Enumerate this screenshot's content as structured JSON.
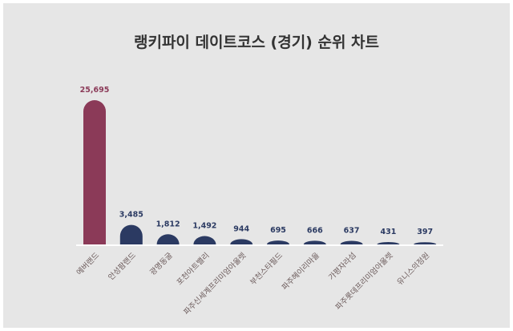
{
  "chart_data": {
    "type": "bar",
    "title": "랭키파이 데이트코스 (경기) 순위 차트",
    "categories": [
      "에버랜드",
      "안성팜랜드",
      "광명동굴",
      "포천아트밸리",
      "파주신세계프리미엄아울렛",
      "부천스타필드",
      "파주헤이리마을",
      "가평자라섬",
      "파주롯데프리미엄아울렛",
      "유니스의정원"
    ],
    "values": [
      25695,
      3485,
      1812,
      1492,
      944,
      695,
      666,
      637,
      431,
      397
    ],
    "value_labels": [
      "25,695",
      "3,485",
      "1,812",
      "1,492",
      "944",
      "695",
      "666",
      "637",
      "431",
      "397"
    ],
    "xlabel": "",
    "ylabel": "",
    "ylim": [
      0,
      25695
    ],
    "grid": false,
    "colors": {
      "highlight": "#8b3a58",
      "default": "#2b3a62"
    }
  }
}
